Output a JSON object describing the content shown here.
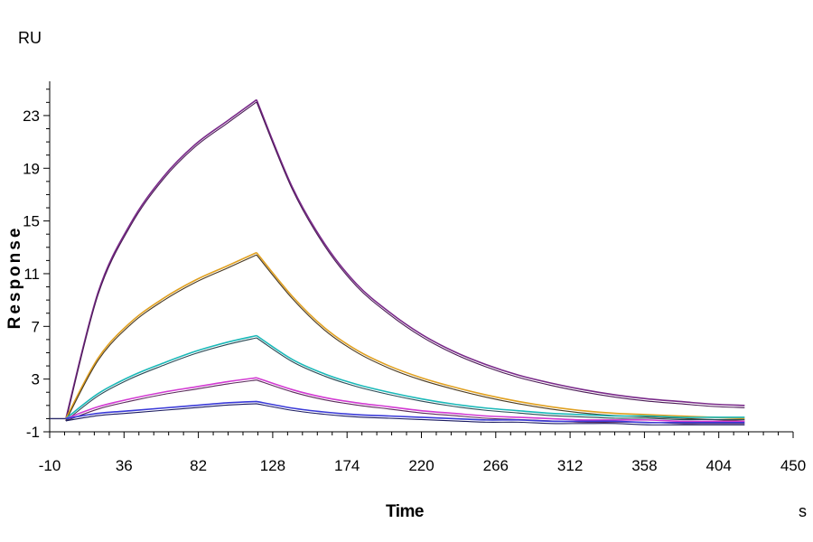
{
  "chart_data": {
    "type": "line",
    "title": "",
    "xlabel": "Time",
    "ylabel": "Response",
    "x_unit": "s",
    "y_unit": "RU",
    "xlim": [
      -10,
      450
    ],
    "ylim": [
      -1,
      25.6
    ],
    "x_ticks": [
      -10,
      36,
      82,
      128,
      174,
      220,
      266,
      312,
      358,
      404,
      450
    ],
    "y_ticks": [
      -1,
      3,
      7,
      11,
      15,
      19,
      23
    ],
    "grid": false,
    "legend": "none",
    "association_start": 0,
    "dissociation_start": 118,
    "end_time": 420,
    "series": [
      {
        "color": "#7a2a8a",
        "fit_color": "#4a1a55",
        "points": [
          [
            0,
            0
          ],
          [
            20,
            9.6
          ],
          [
            40,
            14.8
          ],
          [
            60,
            18.3
          ],
          [
            80,
            20.8
          ],
          [
            100,
            22.6
          ],
          [
            118,
            24.2
          ],
          [
            140,
            17.6
          ],
          [
            160,
            13.3
          ],
          [
            180,
            10.2
          ],
          [
            200,
            8.1
          ],
          [
            220,
            6.4
          ],
          [
            240,
            5.1
          ],
          [
            260,
            4.1
          ],
          [
            280,
            3.3
          ],
          [
            300,
            2.7
          ],
          [
            320,
            2.2
          ],
          [
            340,
            1.8
          ],
          [
            360,
            1.5
          ],
          [
            380,
            1.3
          ],
          [
            400,
            1.1
          ],
          [
            420,
            1.0
          ]
        ]
      },
      {
        "color": "#e0a020",
        "fit_color": "#4a3a20",
        "points": [
          [
            0,
            0
          ],
          [
            20,
            4.6
          ],
          [
            40,
            7.3
          ],
          [
            60,
            9.1
          ],
          [
            80,
            10.5
          ],
          [
            100,
            11.6
          ],
          [
            118,
            12.6
          ],
          [
            140,
            9.3
          ],
          [
            160,
            6.9
          ],
          [
            180,
            5.2
          ],
          [
            200,
            4.0
          ],
          [
            220,
            3.1
          ],
          [
            240,
            2.4
          ],
          [
            260,
            1.8
          ],
          [
            280,
            1.3
          ],
          [
            300,
            0.9
          ],
          [
            320,
            0.6
          ],
          [
            340,
            0.4
          ],
          [
            360,
            0.3
          ],
          [
            380,
            0.2
          ],
          [
            400,
            0.1
          ],
          [
            420,
            0.0
          ]
        ]
      },
      {
        "color": "#1ab8b8",
        "fit_color": "#2a4a55",
        "points": [
          [
            0,
            0
          ],
          [
            20,
            1.9
          ],
          [
            40,
            3.2
          ],
          [
            60,
            4.2
          ],
          [
            80,
            5.1
          ],
          [
            100,
            5.8
          ],
          [
            118,
            6.3
          ],
          [
            140,
            4.5
          ],
          [
            160,
            3.4
          ],
          [
            180,
            2.6
          ],
          [
            200,
            2.0
          ],
          [
            220,
            1.5
          ],
          [
            240,
            1.1
          ],
          [
            260,
            0.8
          ],
          [
            280,
            0.6
          ],
          [
            300,
            0.4
          ],
          [
            320,
            0.3
          ],
          [
            340,
            0.2
          ],
          [
            360,
            0.2
          ],
          [
            380,
            0.1
          ],
          [
            400,
            0.1
          ],
          [
            420,
            0.1
          ]
        ]
      },
      {
        "color": "#d23ad2",
        "fit_color": "#5a2a5a",
        "points": [
          [
            0,
            0
          ],
          [
            20,
            0.9
          ],
          [
            40,
            1.5
          ],
          [
            60,
            2.0
          ],
          [
            80,
            2.4
          ],
          [
            100,
            2.8
          ],
          [
            118,
            3.1
          ],
          [
            140,
            2.2
          ],
          [
            160,
            1.6
          ],
          [
            180,
            1.2
          ],
          [
            200,
            0.9
          ],
          [
            220,
            0.6
          ],
          [
            240,
            0.4
          ],
          [
            260,
            0.2
          ],
          [
            280,
            0.1
          ],
          [
            300,
            0.0
          ],
          [
            320,
            -0.1
          ],
          [
            340,
            -0.1
          ],
          [
            360,
            -0.1
          ],
          [
            380,
            -0.2
          ],
          [
            400,
            -0.2
          ],
          [
            420,
            -0.2
          ]
        ]
      },
      {
        "color": "#3a3ad8",
        "fit_color": "#1a1a60",
        "points": [
          [
            0,
            0
          ],
          [
            20,
            0.4
          ],
          [
            40,
            0.6
          ],
          [
            60,
            0.8
          ],
          [
            80,
            1.0
          ],
          [
            100,
            1.2
          ],
          [
            118,
            1.3
          ],
          [
            140,
            0.8
          ],
          [
            160,
            0.5
          ],
          [
            180,
            0.3
          ],
          [
            200,
            0.2
          ],
          [
            220,
            0.1
          ],
          [
            240,
            0.0
          ],
          [
            260,
            -0.1
          ],
          [
            280,
            -0.1
          ],
          [
            300,
            -0.2
          ],
          [
            320,
            -0.2
          ],
          [
            340,
            -0.2
          ],
          [
            360,
            -0.3
          ],
          [
            380,
            -0.3
          ],
          [
            400,
            -0.3
          ],
          [
            420,
            -0.3
          ]
        ]
      }
    ]
  }
}
